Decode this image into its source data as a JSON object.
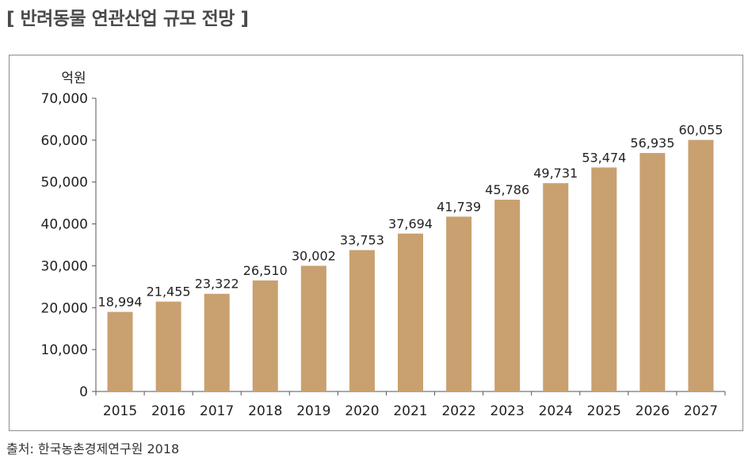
{
  "page": {
    "title": "[ 반려동물 연관산업 규모 전망 ]",
    "source": "출처: 한국농촌경제연구원 2018"
  },
  "colors": {
    "bar": "#c9a070",
    "axis": "#555555",
    "frame": "#8c8c8c"
  },
  "chart_data": {
    "type": "bar",
    "title": "반려동물 연관산업 규모 전망",
    "unit_label": "억원",
    "xlabel": "",
    "ylabel": "억원",
    "categories": [
      "2015",
      "2016",
      "2017",
      "2018",
      "2019",
      "2020",
      "2021",
      "2022",
      "2023",
      "2024",
      "2025",
      "2026",
      "2027"
    ],
    "values": [
      18994,
      21455,
      23322,
      26510,
      30002,
      33753,
      37694,
      41739,
      45786,
      49731,
      53474,
      56935,
      60055
    ],
    "value_labels": [
      "18,994",
      "21,455",
      "23,322",
      "26,510",
      "30,002",
      "33,753",
      "37,694",
      "41,739",
      "45,786",
      "49,731",
      "53,474",
      "56,935",
      "60,055"
    ],
    "ylim": [
      0,
      70000
    ],
    "yticks": [
      0,
      10000,
      20000,
      30000,
      40000,
      50000,
      60000,
      70000
    ],
    "ytick_labels": [
      "0",
      "10,000",
      "20,000",
      "30,000",
      "40,000",
      "50,000",
      "60,000",
      "70,000"
    ],
    "grid": false,
    "legend": "none"
  }
}
